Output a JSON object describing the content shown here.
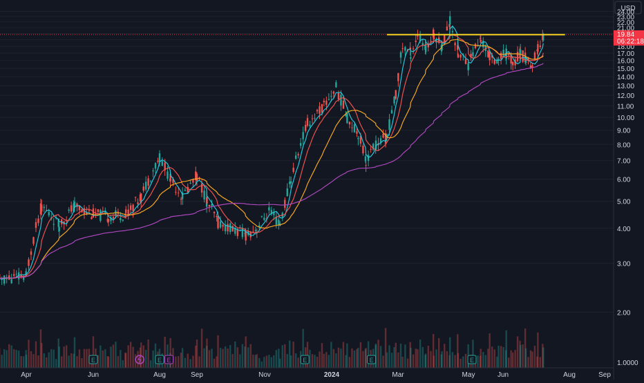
{
  "header": {
    "currency": "USD"
  },
  "price_tag": {
    "price": "19.84",
    "countdown": "06:22:18",
    "color": "#f23645"
  },
  "bottom_axis_value": "1.0000",
  "colors": {
    "background": "#131722",
    "up": "#26a69a",
    "down": "#ef5350",
    "ma_fast": "#26c6da",
    "ma_mid": "#ef5350",
    "ma_slow": "#f5a623",
    "ma_long": "#ab47bc",
    "resistance": "#f5d020"
  },
  "events": [
    {
      "icon": "earnings-icon",
      "label": "E",
      "month": "Jun",
      "frac": 0.0
    },
    {
      "icon": "earnings-icon",
      "label": "E",
      "month": "Aug",
      "frac": 0.0
    },
    {
      "icon": "earnings-icon",
      "label": "E",
      "month": "Nov",
      "frac": 0.6
    },
    {
      "icon": "earnings-icon",
      "label": "E",
      "month": "2024",
      "frac": 0.6
    },
    {
      "icon": "earnings-icon",
      "label": "E",
      "month": "May",
      "frac": 0.1
    },
    {
      "icon": "dividend-icon",
      "label": "",
      "month": "Jun",
      "frac": 0.7
    },
    {
      "icon": "earnings-icon",
      "label": "E",
      "month": "Aug",
      "frac": 0.25
    }
  ],
  "chart_data": {
    "type": "candlestick",
    "x_ticks": [
      "Apr",
      "Jun",
      "Aug",
      "Sep",
      "Nov",
      "2024",
      "Mar",
      "May",
      "Jun",
      "Aug",
      "Sep"
    ],
    "y_ticks": [
      "2.00",
      "3.00",
      "4.00",
      "5.00",
      "6.00",
      "7.00",
      "8.00",
      "9.00",
      "10.00",
      "11.00",
      "12.00",
      "13.00",
      "14.00",
      "15.00",
      "16.00",
      "17.00",
      "18.00",
      "19.00",
      "20.00",
      "21.00",
      "22.00",
      "23.00",
      "24.00"
    ],
    "ylim": [
      1.4,
      25.2
    ],
    "price_line": 19.84,
    "resistance_level": 19.8,
    "series_close": [
      {
        "x": "2023-03-01",
        "y": 2.6
      },
      {
        "x": "2023-04-01",
        "y": 2.7
      },
      {
        "x": "2023-04-15",
        "y": 4.8
      },
      {
        "x": "2023-05-01",
        "y": 4.1
      },
      {
        "x": "2023-05-15",
        "y": 4.8
      },
      {
        "x": "2023-06-01",
        "y": 4.5
      },
      {
        "x": "2023-06-15",
        "y": 4.4
      },
      {
        "x": "2023-07-01",
        "y": 4.5
      },
      {
        "x": "2023-07-15",
        "y": 5.2
      },
      {
        "x": "2023-08-01",
        "y": 7.2
      },
      {
        "x": "2023-08-10",
        "y": 6.0
      },
      {
        "x": "2023-08-20",
        "y": 5.2
      },
      {
        "x": "2023-09-01",
        "y": 6.2
      },
      {
        "x": "2023-09-10",
        "y": 5.0
      },
      {
        "x": "2023-09-20",
        "y": 4.2
      },
      {
        "x": "2023-10-01",
        "y": 4.0
      },
      {
        "x": "2023-10-15",
        "y": 3.8
      },
      {
        "x": "2023-10-25",
        "y": 4.0
      },
      {
        "x": "2023-11-05",
        "y": 4.6
      },
      {
        "x": "2023-11-15",
        "y": 4.1
      },
      {
        "x": "2023-11-25",
        "y": 6.0
      },
      {
        "x": "2023-12-10",
        "y": 9.5
      },
      {
        "x": "2023-12-25",
        "y": 11.0
      },
      {
        "x": "2024-01-05",
        "y": 12.8
      },
      {
        "x": "2024-01-15",
        "y": 10.0
      },
      {
        "x": "2024-01-25",
        "y": 8.8
      },
      {
        "x": "2024-02-01",
        "y": 7.0
      },
      {
        "x": "2024-02-10",
        "y": 8.0
      },
      {
        "x": "2024-02-20",
        "y": 8.5
      },
      {
        "x": "2024-02-28",
        "y": 12.0
      },
      {
        "x": "2024-03-05",
        "y": 18.0
      },
      {
        "x": "2024-03-12",
        "y": 17.0
      },
      {
        "x": "2024-03-18",
        "y": 19.8
      },
      {
        "x": "2024-03-25",
        "y": 17.5
      },
      {
        "x": "2024-04-01",
        "y": 20.0
      },
      {
        "x": "2024-04-08",
        "y": 18.0
      },
      {
        "x": "2024-04-15",
        "y": 22.2
      },
      {
        "x": "2024-04-22",
        "y": 17.0
      },
      {
        "x": "2024-05-01",
        "y": 15.5
      },
      {
        "x": "2024-05-05",
        "y": 17.2
      },
      {
        "x": "2024-05-12",
        "y": 19.0
      },
      {
        "x": "2024-05-20",
        "y": 16.5
      },
      {
        "x": "2024-05-28",
        "y": 16.2
      },
      {
        "x": "2024-06-04",
        "y": 17.0
      },
      {
        "x": "2024-06-10",
        "y": 15.8
      },
      {
        "x": "2024-06-17",
        "y": 17.0
      },
      {
        "x": "2024-06-22",
        "y": 16.2
      },
      {
        "x": "2024-06-28",
        "y": 15.4
      },
      {
        "x": "2024-07-03",
        "y": 17.5
      },
      {
        "x": "2024-07-08",
        "y": 19.84
      }
    ]
  }
}
